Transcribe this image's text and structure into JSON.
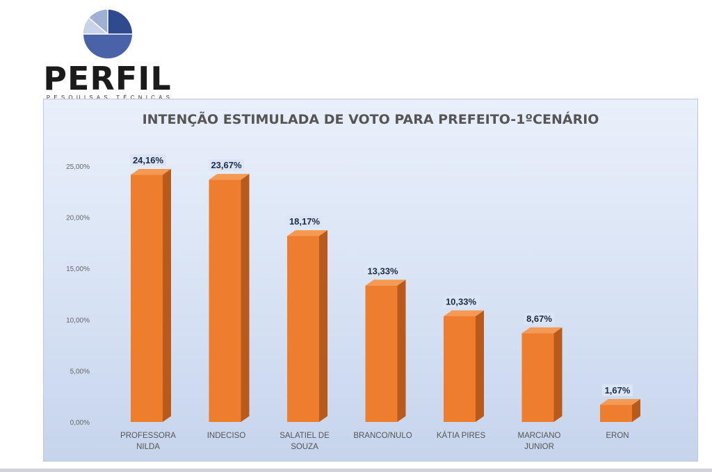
{
  "brand": {
    "name": "PERFIL",
    "tagline": "PESQUISAS TÉCNICAS"
  },
  "chart_data": {
    "type": "bar",
    "title": "INTENÇÃO ESTIMULADA DE VOTO PARA PREFEITO-1ºCENÁRIO",
    "categories": [
      [
        "PROFESSORA",
        "NILDA"
      ],
      [
        "INDECISO"
      ],
      [
        "SALATIEL DE",
        "SOUZA"
      ],
      [
        "BRANCO/NULO"
      ],
      [
        "KÁTIA     PIRES"
      ],
      [
        "MARCIANO",
        "JUNIOR"
      ],
      [
        "ERON"
      ]
    ],
    "values": [
      24.16,
      23.67,
      18.17,
      13.33,
      10.33,
      8.67,
      1.67
    ],
    "value_labels": [
      "24,16%",
      "23,67%",
      "18,17%",
      "13,33%",
      "10,33%",
      "8,67%",
      "1,67%"
    ],
    "yticks": [
      0,
      5,
      10,
      15,
      20,
      25
    ],
    "ytick_labels": [
      "0,00%",
      "5,00%",
      "10,00%",
      "15,00%",
      "20,00%",
      "25,00%"
    ],
    "ylim": [
      0,
      25
    ],
    "grid": false,
    "colors": {
      "bar_front": "#ee7d2e",
      "bar_side": "#b85a1c",
      "bar_top": "#f59a55",
      "label_bg": "#dbe5f5",
      "axis_text": "#666666"
    }
  }
}
